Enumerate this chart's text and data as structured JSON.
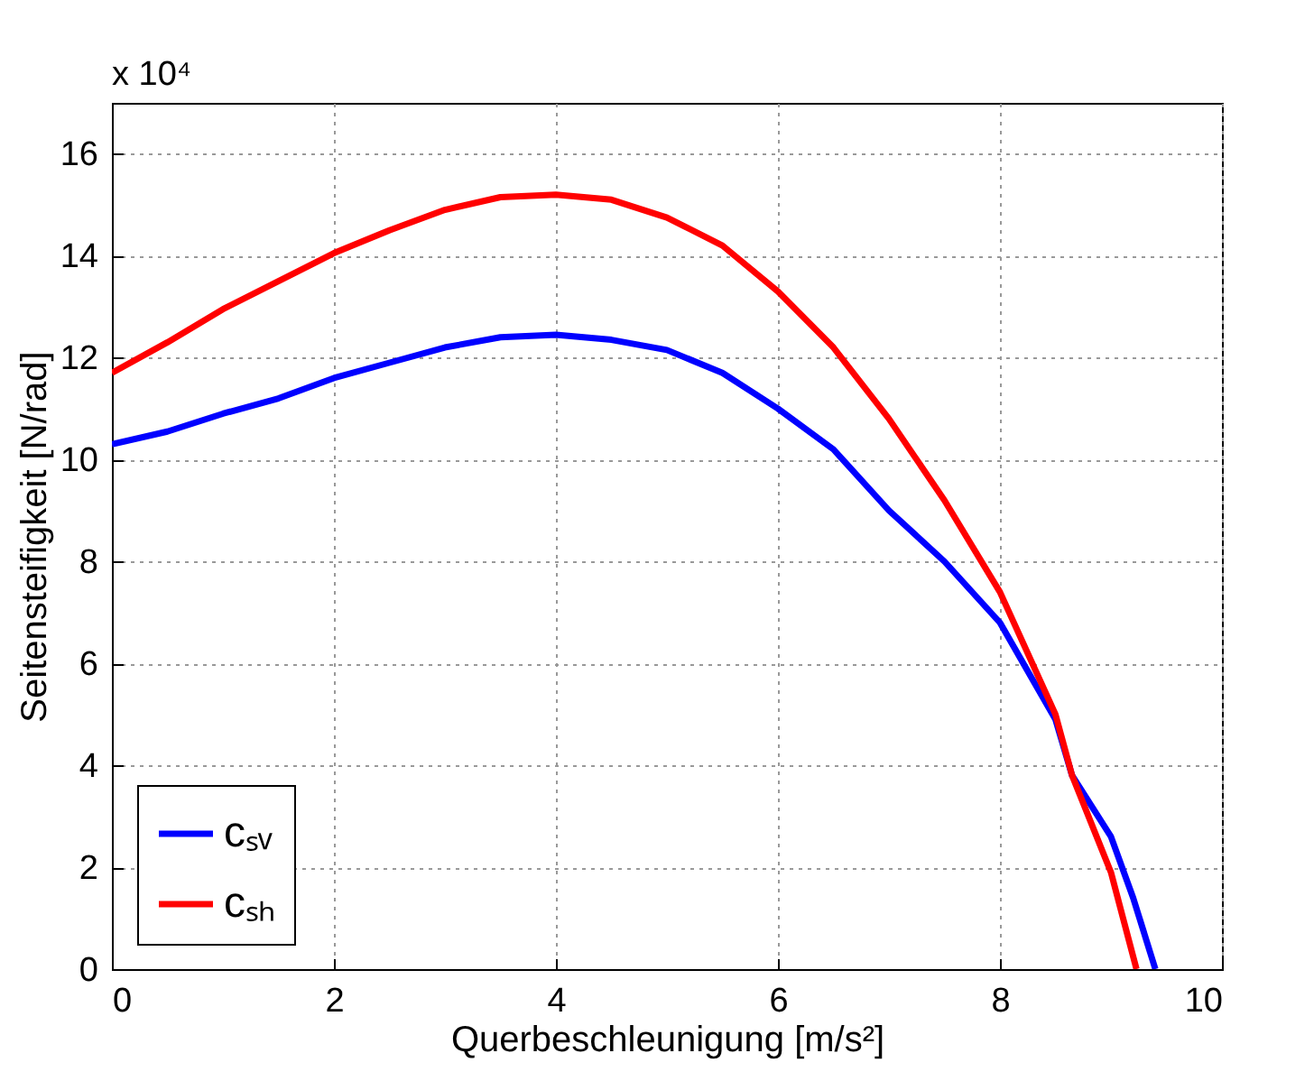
{
  "chart_data": {
    "type": "line",
    "xlabel": "Querbeschleunigung [m/s²]",
    "ylabel": "Seitensteifigkeit [N/rad]",
    "annotations": [
      "x 10⁴"
    ],
    "xlim": [
      0,
      10
    ],
    "xticks": [
      0,
      2,
      4,
      6,
      8,
      10
    ],
    "ylim": [
      0,
      17
    ],
    "yticks": [
      0,
      2,
      4,
      6,
      8,
      10,
      12,
      14,
      16
    ],
    "grid": true,
    "legend": "bottom left",
    "line_style": "solid",
    "series": [
      {
        "name": "cₛᵥ",
        "color": "#0000ff",
        "x": [
          0,
          0.5,
          1,
          1.5,
          2,
          2.5,
          3,
          3.5,
          4,
          4.5,
          5,
          5.5,
          6,
          6.5,
          7,
          7.5,
          8,
          8.5,
          8.65,
          9,
          9.2,
          9.4
        ],
        "values": [
          10.3,
          10.55,
          10.9,
          11.2,
          11.6,
          11.9,
          12.2,
          12.4,
          12.45,
          12.35,
          12.15,
          11.7,
          11.0,
          10.2,
          9.0,
          8.0,
          6.8,
          4.9,
          3.8,
          2.6,
          1.4,
          0
        ]
      },
      {
        "name": "cₛₕ",
        "color": "#ff0000",
        "x": [
          0,
          0.5,
          1,
          1.5,
          2,
          2.5,
          3,
          3.5,
          4,
          4.5,
          5,
          5.5,
          6,
          6.5,
          7,
          7.5,
          8,
          8.5,
          8.65,
          9,
          9.23
        ],
        "values": [
          11.7,
          12.3,
          12.95,
          13.5,
          14.05,
          14.5,
          14.9,
          15.15,
          15.2,
          15.1,
          14.75,
          14.2,
          13.3,
          12.2,
          10.8,
          9.2,
          7.4,
          5.0,
          3.8,
          1.9,
          0
        ]
      }
    ]
  }
}
